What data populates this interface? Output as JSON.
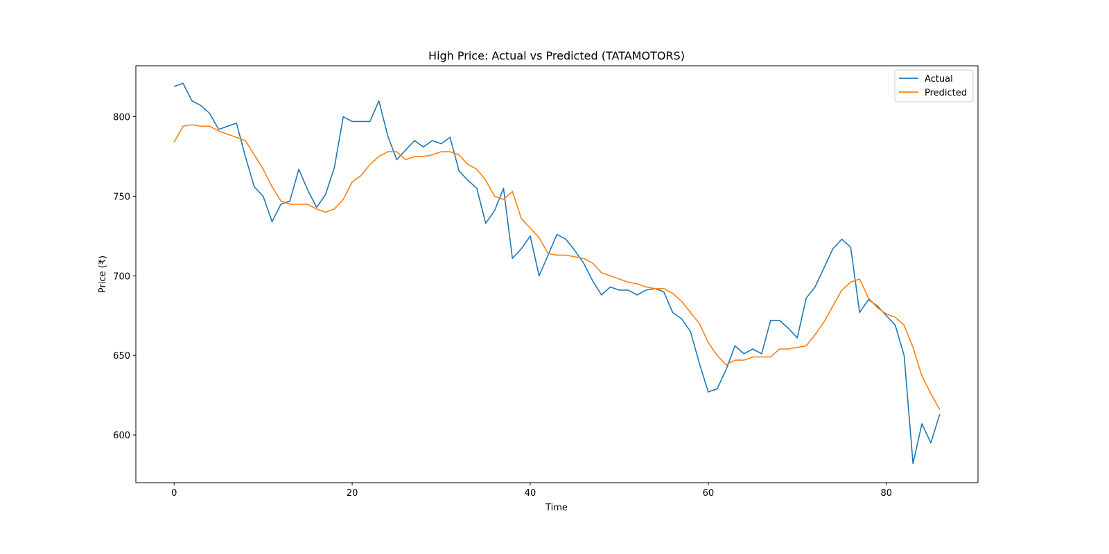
{
  "chart_data": {
    "type": "line",
    "title": "High Price: Actual vs Predicted (TATAMOTORS)",
    "xlabel": "Time",
    "ylabel": "Price (₹)",
    "xlim": [
      -4.3,
      90.3
    ],
    "ylim": [
      570,
      832
    ],
    "xticks": [
      0,
      20,
      40,
      60,
      80
    ],
    "yticks": [
      600,
      650,
      700,
      750,
      800
    ],
    "grid": false,
    "legend_position": "top-right",
    "x": [
      0,
      1,
      2,
      3,
      4,
      5,
      6,
      7,
      8,
      9,
      10,
      11,
      12,
      13,
      14,
      15,
      16,
      17,
      18,
      19,
      20,
      21,
      22,
      23,
      24,
      25,
      26,
      27,
      28,
      29,
      30,
      31,
      32,
      33,
      34,
      35,
      36,
      37,
      38,
      39,
      40,
      41,
      42,
      43,
      44,
      45,
      46,
      47,
      48,
      49,
      50,
      51,
      52,
      53,
      54,
      55,
      56,
      57,
      58,
      59,
      60,
      61,
      62,
      63,
      64,
      65,
      66,
      67,
      68,
      69,
      70,
      71,
      72,
      73,
      74,
      75,
      76,
      77,
      78,
      79,
      80,
      81,
      82,
      83,
      84,
      85,
      86
    ],
    "series": [
      {
        "name": "Actual",
        "color": "#1f77b4",
        "values": [
          819,
          821,
          810,
          807,
          802,
          792,
          794,
          796,
          775,
          756,
          750,
          734,
          745,
          747,
          767,
          754,
          743,
          751,
          768,
          800,
          797,
          797,
          797,
          810,
          788,
          773,
          779,
          785,
          781,
          785,
          783,
          787,
          766,
          760,
          755,
          733,
          741,
          755,
          711,
          717,
          725,
          700,
          713,
          726,
          723,
          716,
          708,
          697,
          688,
          693,
          691,
          691,
          688,
          691,
          692,
          690,
          677,
          673,
          665,
          645,
          627,
          629,
          641,
          656,
          651,
          654,
          651,
          672,
          672,
          667,
          661,
          686,
          693,
          705,
          717,
          723,
          718,
          677,
          685,
          681,
          675,
          669,
          650,
          582,
          607,
          595,
          613
        ]
      },
      {
        "name": "Predicted",
        "color": "#ff7f0e",
        "values": [
          784,
          794,
          795,
          794,
          794,
          791,
          789,
          787,
          785,
          776,
          767,
          756,
          747,
          745,
          745,
          745,
          742,
          740,
          742,
          748,
          759,
          763,
          770,
          775,
          778,
          778,
          773,
          775,
          775,
          776,
          778,
          778,
          776,
          770,
          767,
          760,
          750,
          748,
          753,
          736,
          730,
          724,
          714,
          713,
          713,
          712,
          711,
          708,
          702,
          700,
          698,
          696,
          695,
          693,
          692,
          692,
          689,
          684,
          677,
          670,
          658,
          650,
          644,
          647,
          647,
          649,
          649,
          649,
          654,
          654,
          655,
          656,
          663,
          671,
          681,
          691,
          696,
          698,
          686,
          680,
          676,
          674,
          669,
          655,
          637,
          626,
          616
        ]
      }
    ]
  }
}
